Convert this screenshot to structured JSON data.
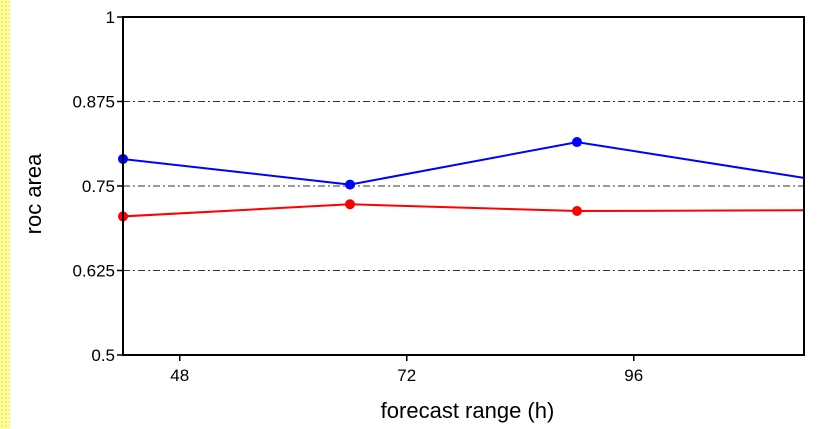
{
  "chart_data": {
    "type": "line",
    "title": "",
    "xlabel": "forecast range (h)",
    "ylabel": "roc area",
    "xlim": [
      42,
      114
    ],
    "ylim": [
      0.5,
      1.0
    ],
    "xticks": [
      48,
      72,
      96
    ],
    "yticks": [
      0.5,
      0.625,
      0.75,
      0.875,
      1.0
    ],
    "ytick_labels": [
      "0.5",
      "0.625",
      "0.75",
      "0.875",
      "1"
    ],
    "xtick_labels": [
      "48",
      "72",
      "96"
    ],
    "grid": "horizontal dash-dot",
    "series": [
      {
        "color": "#0000ff",
        "x": [
          42,
          66,
          90,
          114
        ],
        "y": [
          0.79,
          0.752,
          0.815,
          0.762
        ],
        "markers": [
          true,
          true,
          true,
          false
        ]
      },
      {
        "color": "#ff0000",
        "x": [
          42,
          66,
          90,
          114
        ],
        "y": [
          0.705,
          0.723,
          0.713,
          0.714
        ],
        "markers": [
          true,
          true,
          true,
          false
        ]
      }
    ]
  }
}
